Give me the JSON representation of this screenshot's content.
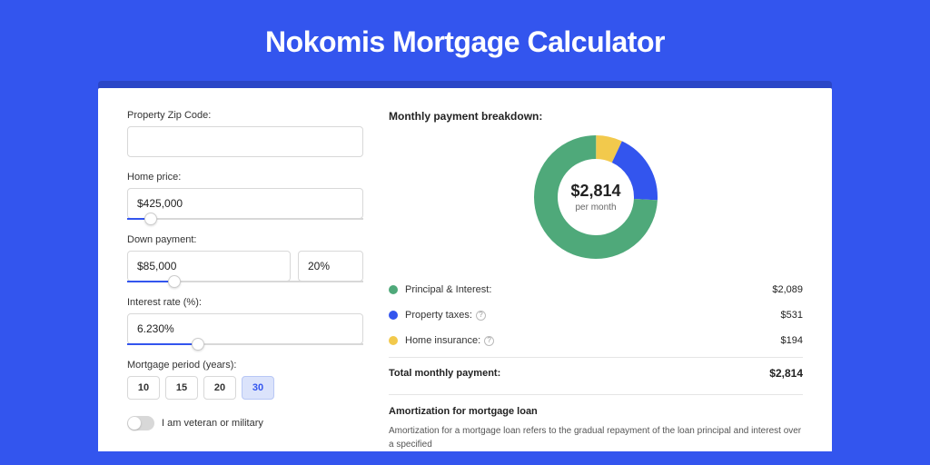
{
  "page": {
    "title": "Nokomis Mortgage Calculator",
    "background_color": "#3355ee",
    "card_shadow_color": "#2a46c7"
  },
  "form": {
    "zip": {
      "label": "Property Zip Code:",
      "value": ""
    },
    "home_price": {
      "label": "Home price:",
      "value": "$425,000",
      "slider_percent": 10
    },
    "down_payment": {
      "label": "Down payment:",
      "amount": "$85,000",
      "percent": "20%",
      "slider_percent": 20
    },
    "interest_rate": {
      "label": "Interest rate (%):",
      "value": "6.230%",
      "slider_percent": 30
    },
    "mortgage_period": {
      "label": "Mortgage period (years):",
      "options": [
        "10",
        "15",
        "20",
        "30"
      ],
      "selected": "30"
    },
    "veteran": {
      "label": "I am veteran or military",
      "checked": false
    }
  },
  "breakdown": {
    "title": "Monthly payment breakdown:",
    "donut": {
      "amount": "$2,814",
      "sub": "per month",
      "segments": [
        {
          "label": "Principal & Interest:",
          "value": "$2,089",
          "color": "#4fa97a",
          "fraction": 0.742
        },
        {
          "label": "Property taxes:",
          "value": "$531",
          "color": "#3355ee",
          "fraction": 0.189,
          "info": true
        },
        {
          "label": "Home insurance:",
          "value": "$194",
          "color": "#f2c94c",
          "fraction": 0.069,
          "info": true
        }
      ],
      "inner_radius": 42,
      "outer_radius": 68,
      "stroke_width": 26
    },
    "total": {
      "label": "Total monthly payment:",
      "value": "$2,814"
    }
  },
  "amortization": {
    "title": "Amortization for mortgage loan",
    "text": "Amortization for a mortgage loan refers to the gradual repayment of the loan principal and interest over a specified"
  }
}
